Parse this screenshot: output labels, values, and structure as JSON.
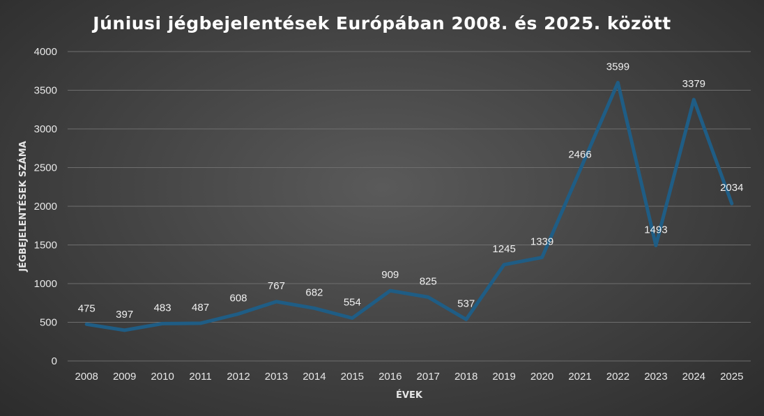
{
  "chart_data": {
    "type": "line",
    "title": "Júniusi jégbejelentések Európában 2008. és 2025. között",
    "xlabel": "ÉVEK",
    "ylabel": "JÉGBEJELENTÉSEK SZÁMA",
    "categories": [
      "2008",
      "2009",
      "2010",
      "2011",
      "2012",
      "2013",
      "2014",
      "2015",
      "2016",
      "2017",
      "2018",
      "2019",
      "2020",
      "2021",
      "2022",
      "2023",
      "2024",
      "2025"
    ],
    "series": [
      {
        "values": [
          475,
          397,
          483,
          487,
          608,
          767,
          682,
          554,
          909,
          825,
          537,
          1245,
          1339,
          2466,
          3599,
          1493,
          3379,
          2034
        ]
      }
    ],
    "data_labels": [
      "475",
      "397",
      "483",
      "487",
      "608",
      "767",
      "682",
      "554",
      "909",
      "825",
      "537",
      "1245",
      "1339",
      "2466",
      "3599",
      "1493",
      "3379",
      "2034"
    ],
    "ylim": [
      0,
      4000
    ],
    "yticks": [
      "0",
      "500",
      "1000",
      "1500",
      "2000",
      "2500",
      "3000",
      "3500",
      "4000"
    ],
    "grid": true,
    "legend": "none",
    "colors": {
      "line": "#1f5d85",
      "background": "#484848",
      "grid": "#6e6e6e",
      "text": "#e8e8e8"
    }
  }
}
